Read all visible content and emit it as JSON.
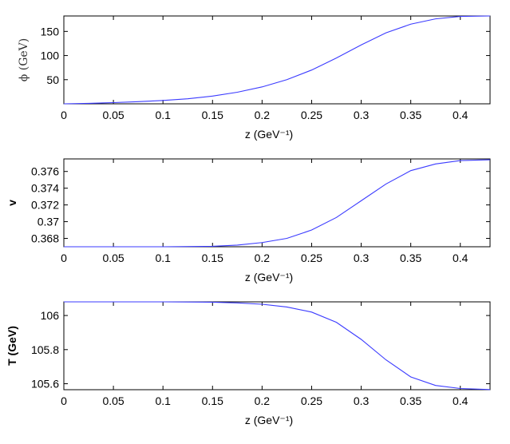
{
  "chart_data": [
    {
      "type": "line",
      "ylabel": "ϕ (GeV)",
      "xlabel": "z (GeV⁻¹)",
      "xlim": [
        0,
        0.43
      ],
      "ylim": [
        0,
        182
      ],
      "xticks": [
        "0",
        "0.05",
        "0.1",
        "0.15",
        "0.2",
        "0.25",
        "0.3",
        "0.35",
        "0.4"
      ],
      "xtick_values": [
        0,
        0.05,
        0.1,
        0.15,
        0.2,
        0.25,
        0.3,
        0.35,
        0.4
      ],
      "yticks": [
        "50",
        "100",
        "150"
      ],
      "ytick_values": [
        50,
        100,
        150
      ],
      "series": [
        {
          "color": "#3b3bff",
          "x": [
            0,
            0.025,
            0.05,
            0.075,
            0.1,
            0.125,
            0.15,
            0.175,
            0.2,
            0.225,
            0.25,
            0.275,
            0.3,
            0.325,
            0.35,
            0.375,
            0.4,
            0.43
          ],
          "y": [
            0,
            1,
            2.5,
            4.5,
            7,
            10.5,
            16,
            24,
            35,
            50,
            70,
            95,
            122,
            147,
            165,
            176,
            181,
            182
          ]
        }
      ]
    },
    {
      "type": "line",
      "ylabel": "v",
      "xlabel": "z (GeV⁻¹)",
      "xlim": [
        0,
        0.43
      ],
      "ylim": [
        0.367,
        0.3775
      ],
      "xticks": [
        "0",
        "0.05",
        "0.1",
        "0.15",
        "0.2",
        "0.25",
        "0.3",
        "0.35",
        "0.4"
      ],
      "xtick_values": [
        0,
        0.05,
        0.1,
        0.15,
        0.2,
        0.25,
        0.3,
        0.35,
        0.4
      ],
      "yticks": [
        "0.368",
        "0.37",
        "0.372",
        "0.374",
        "0.376"
      ],
      "ytick_values": [
        0.368,
        0.37,
        0.372,
        0.374,
        0.376
      ],
      "series": [
        {
          "color": "#3b3bff",
          "x": [
            0,
            0.05,
            0.1,
            0.15,
            0.175,
            0.2,
            0.225,
            0.25,
            0.275,
            0.3,
            0.325,
            0.35,
            0.375,
            0.4,
            0.43
          ],
          "y": [
            0.367,
            0.367,
            0.367,
            0.36705,
            0.3672,
            0.3675,
            0.368,
            0.369,
            0.3705,
            0.3725,
            0.3745,
            0.3761,
            0.3769,
            0.3773,
            0.3774
          ]
        }
      ]
    },
    {
      "type": "line",
      "ylabel": "T (GeV)",
      "xlabel": "z (GeV⁻¹)",
      "xlim": [
        0,
        0.43
      ],
      "ylim": [
        105.565,
        106.08
      ],
      "xticks": [
        "0",
        "0.05",
        "0.1",
        "0.15",
        "0.2",
        "0.25",
        "0.3",
        "0.35",
        "0.4"
      ],
      "xtick_values": [
        0,
        0.05,
        0.1,
        0.15,
        0.2,
        0.25,
        0.3,
        0.35,
        0.4
      ],
      "yticks": [
        "105.6",
        "105.8",
        "106"
      ],
      "ytick_values": [
        105.6,
        105.8,
        106
      ],
      "series": [
        {
          "color": "#3b3bff",
          "x": [
            0,
            0.05,
            0.1,
            0.15,
            0.175,
            0.2,
            0.225,
            0.25,
            0.275,
            0.3,
            0.325,
            0.35,
            0.375,
            0.4,
            0.43
          ],
          "y": [
            106.08,
            106.08,
            106.08,
            106.078,
            106.074,
            106.066,
            106.05,
            106.02,
            105.96,
            105.86,
            105.74,
            105.64,
            105.59,
            105.572,
            105.566
          ]
        }
      ]
    }
  ]
}
